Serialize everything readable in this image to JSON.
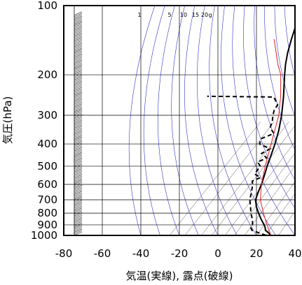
{
  "chart_data": {
    "type": "line",
    "chart_kind": "skew-T log-p thermodynamic diagram",
    "title": "",
    "xlabel": "気温(実線), 露点(破線)",
    "ylabel": "気圧(hPa)",
    "xlim": [
      -80,
      40
    ],
    "ylim": [
      1000,
      100
    ],
    "y_scale": "log",
    "x_ticks": [
      -80,
      -60,
      -40,
      -20,
      0,
      20,
      40
    ],
    "y_ticks": [
      100,
      200,
      300,
      400,
      500,
      600,
      700,
      800,
      900,
      1000
    ],
    "mixing_ratio_labels": [
      "1",
      "5",
      "10",
      "15",
      "20",
      "g"
    ],
    "mixing_ratio_values": [
      1,
      5,
      10,
      15,
      20
    ],
    "grid": true,
    "colors": {
      "temperature": "#000000",
      "dewpoint": "#000000",
      "parcel": "#e02020",
      "adiabats": "#3333cc",
      "mixing_ratio": "#555555",
      "grid": "#000000"
    },
    "series": [
      {
        "style": "solid",
        "x_is_skewed_axis_value": true,
        "points": [
          [
            1000,
            27.5
          ],
          [
            975,
            25.0
          ],
          [
            950,
            22.0
          ],
          [
            925,
            20.5
          ],
          [
            900,
            18.5
          ],
          [
            850,
            14.0
          ],
          [
            800,
            9.5
          ],
          [
            750,
            5.0
          ],
          [
            700,
            1.0
          ],
          [
            650,
            -1.5
          ],
          [
            600,
            -4.0
          ],
          [
            550,
            -7.0
          ],
          [
            500,
            -10.5
          ],
          [
            450,
            -14.0
          ],
          [
            400,
            -18.0
          ],
          [
            350,
            -23.0
          ],
          [
            300,
            -29.5
          ],
          [
            250,
            -38.0
          ],
          [
            200,
            -49.0
          ],
          [
            180,
            -54.0
          ],
          [
            160,
            -59.0
          ],
          [
            140,
            -64.0
          ],
          [
            125,
            -68.0
          ],
          [
            115,
            -71.0
          ],
          [
            105,
            -73.5
          ],
          [
            100,
            -75.0
          ]
        ]
      },
      {
        "style": "dashed",
        "x_is_skewed_axis_value": true,
        "points": [
          [
            1000,
            25.0
          ],
          [
            975,
            20.0
          ],
          [
            950,
            15.0
          ],
          [
            925,
            13.0
          ],
          [
            900,
            12.5
          ],
          [
            850,
            9.5
          ],
          [
            800,
            5.5
          ],
          [
            750,
            2.0
          ],
          [
            700,
            -2.0
          ],
          [
            650,
            -5.0
          ],
          [
            600,
            -8.5
          ],
          [
            580,
            -10.5
          ],
          [
            560,
            -8.0
          ],
          [
            540,
            -13.0
          ],
          [
            500,
            -14.0
          ],
          [
            480,
            -17.5
          ],
          [
            460,
            -15.0
          ],
          [
            440,
            -20.0
          ],
          [
            420,
            -18.0
          ],
          [
            400,
            -26.0
          ],
          [
            380,
            -28.0
          ],
          [
            360,
            -24.0
          ],
          [
            340,
            -29.0
          ],
          [
            320,
            -31.0
          ],
          [
            300,
            -34.0
          ],
          [
            285,
            -36.0
          ],
          [
            270,
            -37.0
          ],
          [
            250,
            -43.0
          ],
          [
            248,
            -78.0
          ]
        ]
      },
      {
        "style": "parcel",
        "x_is_skewed_axis_value": true,
        "points": [
          [
            1000,
            27.5
          ],
          [
            900,
            20.0
          ],
          [
            800,
            12.0
          ],
          [
            700,
            3.5
          ],
          [
            600,
            -4.0
          ],
          [
            500,
            -11.5
          ],
          [
            400,
            -20.0
          ],
          [
            300,
            -31.0
          ],
          [
            250,
            -39.5
          ],
          [
            200,
            -51.0
          ],
          [
            180,
            -58.0
          ],
          [
            160,
            -65.0
          ],
          [
            140,
            -73.0
          ]
        ]
      }
    ]
  }
}
